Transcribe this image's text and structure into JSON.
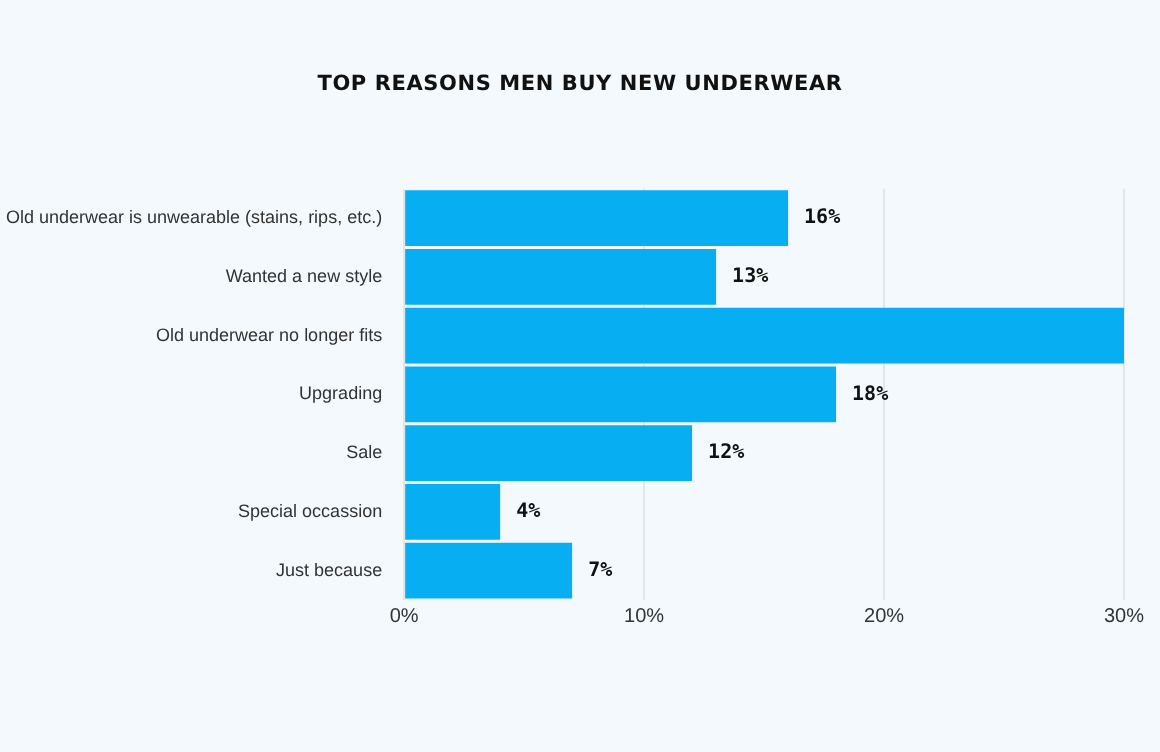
{
  "chart_data": {
    "type": "bar",
    "orientation": "horizontal",
    "title": "TOP REASONS MEN BUY NEW UNDERWEAR",
    "categories": [
      "Old underwear is unwearable (stains, rips, etc.)",
      "Wanted a new style",
      "Old underwear no longer fits",
      "Upgrading",
      "Sale",
      "Special occassion",
      "Just because"
    ],
    "values": [
      16,
      13,
      30,
      18,
      12,
      4,
      7
    ],
    "value_labels": [
      "16%",
      "13%",
      null,
      "18%",
      "12%",
      "4%",
      "7%"
    ],
    "color": "#08aef2",
    "xlim": [
      0,
      30
    ],
    "xticks": [
      {
        "value": 0,
        "label": "0%"
      },
      {
        "value": 10,
        "label": "10%"
      },
      {
        "value": 20,
        "label": "20%"
      },
      {
        "value": 30,
        "label": "30%"
      }
    ],
    "grid": "x",
    "legend": false
  }
}
